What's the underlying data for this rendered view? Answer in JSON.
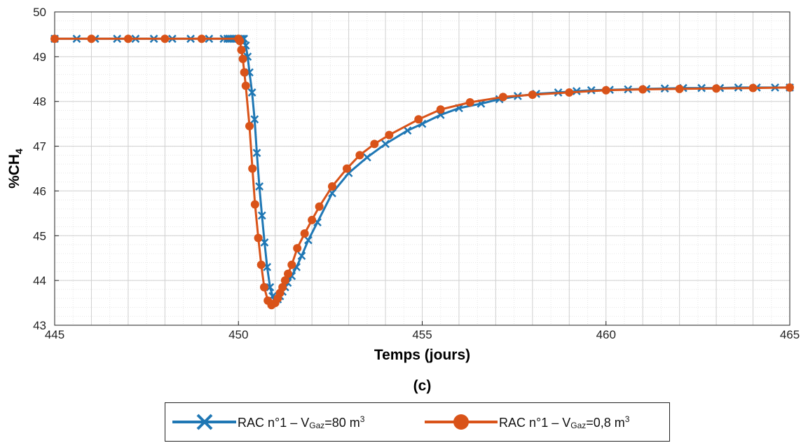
{
  "chart_data": {
    "type": "line",
    "panel_label": "(c)",
    "xlabel": "Temps (jours)",
    "ylabel_main": "%CH",
    "ylabel_sub": "4",
    "xlim": [
      445,
      465
    ],
    "ylim": [
      43,
      50
    ],
    "xticks": [
      "445",
      "450",
      "455",
      "460",
      "465"
    ],
    "yticks": [
      "43",
      "44",
      "45",
      "46",
      "47",
      "48",
      "49",
      "50"
    ],
    "grid": "major and minor",
    "legend_position": "bottom-center",
    "series": [
      {
        "name": "RAC n°1 – V",
        "name_sub": "Gaz",
        "name_tail": "=80 m",
        "name_sup": "3",
        "color": "#1f77b4",
        "marker": "x",
        "points": [
          [
            445.0,
            49.4
          ],
          [
            445.6,
            49.4
          ],
          [
            446.1,
            49.4
          ],
          [
            446.7,
            49.4
          ],
          [
            447.2,
            49.4
          ],
          [
            447.7,
            49.4
          ],
          [
            448.2,
            49.4
          ],
          [
            448.7,
            49.4
          ],
          [
            449.2,
            49.4
          ],
          [
            449.6,
            49.4
          ],
          [
            449.7,
            49.4
          ],
          [
            449.75,
            49.4
          ],
          [
            449.8,
            49.4
          ],
          [
            449.85,
            49.4
          ],
          [
            449.9,
            49.4
          ],
          [
            449.95,
            49.4
          ],
          [
            450.0,
            49.4
          ],
          [
            450.05,
            49.4
          ],
          [
            450.1,
            49.4
          ],
          [
            450.15,
            49.4
          ],
          [
            450.2,
            49.25
          ],
          [
            450.25,
            49.0
          ],
          [
            450.3,
            48.65
          ],
          [
            450.37,
            48.2
          ],
          [
            450.44,
            47.6
          ],
          [
            450.5,
            46.85
          ],
          [
            450.57,
            46.1
          ],
          [
            450.64,
            45.45
          ],
          [
            450.71,
            44.85
          ],
          [
            450.78,
            44.3
          ],
          [
            450.86,
            43.85
          ],
          [
            450.93,
            43.65
          ],
          [
            451.0,
            43.55
          ],
          [
            451.07,
            43.58
          ],
          [
            451.13,
            43.65
          ],
          [
            451.2,
            43.75
          ],
          [
            451.27,
            43.85
          ],
          [
            451.34,
            43.95
          ],
          [
            451.45,
            44.1
          ],
          [
            451.58,
            44.3
          ],
          [
            451.72,
            44.55
          ],
          [
            451.9,
            44.9
          ],
          [
            452.15,
            45.3
          ],
          [
            452.55,
            45.95
          ],
          [
            453.0,
            46.4
          ],
          [
            453.5,
            46.75
          ],
          [
            454.0,
            47.05
          ],
          [
            454.6,
            47.35
          ],
          [
            455.0,
            47.5
          ],
          [
            455.5,
            47.7
          ],
          [
            456.0,
            47.85
          ],
          [
            456.6,
            47.95
          ],
          [
            457.1,
            48.05
          ],
          [
            457.6,
            48.12
          ],
          [
            458.1,
            48.17
          ],
          [
            458.7,
            48.2
          ],
          [
            459.2,
            48.23
          ],
          [
            459.6,
            48.25
          ],
          [
            460.1,
            48.26
          ],
          [
            460.6,
            48.27
          ],
          [
            461.1,
            48.28
          ],
          [
            461.6,
            48.29
          ],
          [
            462.1,
            48.3
          ],
          [
            462.6,
            48.3
          ],
          [
            463.1,
            48.3
          ],
          [
            463.6,
            48.31
          ],
          [
            464.1,
            48.31
          ],
          [
            464.6,
            48.31
          ],
          [
            465.0,
            48.31
          ]
        ]
      },
      {
        "name": "RAC n°1 – V",
        "name_sub": "Gaz",
        "name_tail": "=0,8 m",
        "name_sup": "3",
        "color": "#d95319",
        "marker": "o",
        "points": [
          [
            445.0,
            49.4
          ],
          [
            446.0,
            49.4
          ],
          [
            447.0,
            49.4
          ],
          [
            448.0,
            49.4
          ],
          [
            449.0,
            49.4
          ],
          [
            450.0,
            49.4
          ],
          [
            450.04,
            49.35
          ],
          [
            450.08,
            49.15
          ],
          [
            450.12,
            48.95
          ],
          [
            450.16,
            48.65
          ],
          [
            450.2,
            48.35
          ],
          [
            450.3,
            47.45
          ],
          [
            450.38,
            46.5
          ],
          [
            450.45,
            45.7
          ],
          [
            450.54,
            44.95
          ],
          [
            450.62,
            44.35
          ],
          [
            450.7,
            43.85
          ],
          [
            450.8,
            43.55
          ],
          [
            450.9,
            43.45
          ],
          [
            451.0,
            43.5
          ],
          [
            451.07,
            43.6
          ],
          [
            451.13,
            43.72
          ],
          [
            451.2,
            43.85
          ],
          [
            451.27,
            44.0
          ],
          [
            451.35,
            44.15
          ],
          [
            451.45,
            44.35
          ],
          [
            451.6,
            44.72
          ],
          [
            451.8,
            45.05
          ],
          [
            452.0,
            45.35
          ],
          [
            452.2,
            45.65
          ],
          [
            452.55,
            46.1
          ],
          [
            452.95,
            46.5
          ],
          [
            453.3,
            46.8
          ],
          [
            453.7,
            47.05
          ],
          [
            454.1,
            47.25
          ],
          [
            454.9,
            47.6
          ],
          [
            455.5,
            47.82
          ],
          [
            456.3,
            47.98
          ],
          [
            457.2,
            48.1
          ],
          [
            458.0,
            48.15
          ],
          [
            459.0,
            48.2
          ],
          [
            460.0,
            48.25
          ],
          [
            461.0,
            48.27
          ],
          [
            462.0,
            48.28
          ],
          [
            463.0,
            48.29
          ],
          [
            464.0,
            48.3
          ],
          [
            465.0,
            48.31
          ]
        ]
      }
    ]
  }
}
